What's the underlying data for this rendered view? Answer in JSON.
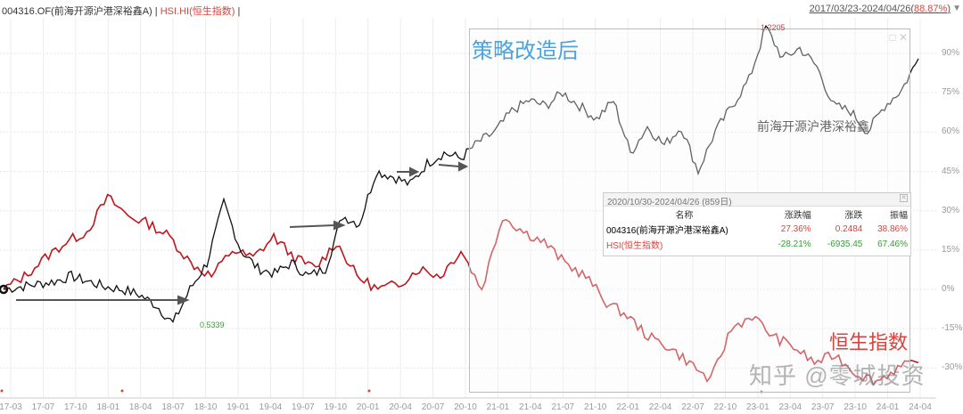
{
  "header": {
    "fund_label": "004316.OF(前海开源沪港深裕鑫A)",
    "sep1": " | ",
    "hsi_label": "HSI.HI(恒生指数)",
    "sep2": " |",
    "range_label": "2017/03/23-2024/04/26(",
    "range_pct": "88.87%",
    "range_close": ")",
    "dropdown_icon": "▼"
  },
  "annotations": {
    "box_title": "策略改造后",
    "fund_name": "前海开源沪港深裕鑫",
    "index_name": "恒生指数",
    "peak_value": "1.2205",
    "low_value": "0.5339",
    "watermark": "知乎 @零城投资",
    "window_buttons": "□ ✕"
  },
  "stats_panel": {
    "title": "2020/10/30-2024/04/26 (859日)",
    "close_icon": "✕",
    "columns": [
      "名称",
      "涨跌幅",
      "涨跌",
      "振幅"
    ],
    "rows": [
      {
        "name": "004316(前海开源沪港深裕鑫A)",
        "change_pct": "27.36%",
        "change": "0.2484",
        "amplitude": "38.86%"
      },
      {
        "name": "HSI(恒生指数)",
        "change_pct": "-28.21%",
        "change": "-6935.45",
        "amplitude": "67.46%"
      }
    ]
  },
  "chart_data": {
    "type": "line",
    "title": "004316.OF vs HSI.HI 2017/03/23-2024/04/26",
    "xlabel": "",
    "ylabel": "",
    "ylim": [
      -35,
      100
    ],
    "y_ticks": [
      "90%",
      "75%",
      "60%",
      "45%",
      "30%",
      "15%",
      "0%",
      "-15%",
      "-30%"
    ],
    "x_ticks": [
      "17-03",
      "17-07",
      "17-10",
      "18-01",
      "18-04",
      "18-07",
      "18-10",
      "19-01",
      "19-04",
      "19-07",
      "19-10",
      "20-01",
      "20-04",
      "20-07",
      "20-10",
      "21-01",
      "21-04",
      "21-07",
      "21-10",
      "22-01",
      "22-04",
      "22-07",
      "22-10",
      "23-01",
      "23-04",
      "23-07",
      "23-10",
      "24-01",
      "24-04"
    ],
    "legend_position": "top-left",
    "grid": true,
    "series": [
      {
        "name": "004316(前海开源沪港深裕鑫A)",
        "color": "#111111",
        "values": [
          0,
          1,
          2,
          3,
          5,
          3,
          1,
          0,
          -2,
          -6,
          -13,
          0,
          10,
          33,
          15,
          8,
          6,
          10,
          5,
          8,
          28,
          25,
          45,
          43,
          40,
          48,
          52,
          50,
          56,
          60,
          68,
          72,
          70,
          75,
          70,
          65,
          72,
          52,
          62,
          55,
          62,
          45,
          60,
          70,
          80,
          100,
          88,
          92,
          85,
          70,
          68,
          60,
          70,
          76,
          88
        ]
      },
      {
        "name": "HSI(恒生指数)",
        "color": "#c0161c",
        "values": [
          0,
          5,
          12,
          18,
          22,
          35,
          28,
          25,
          20,
          10,
          5,
          15,
          12,
          20,
          12,
          8,
          18,
          5,
          0,
          2,
          8,
          5,
          15,
          0,
          28,
          22,
          18,
          10,
          5,
          -5,
          -10,
          -18,
          -22,
          -28,
          -35,
          -15,
          -10,
          -18,
          -22,
          -28,
          -25,
          -32,
          -35,
          -30,
          -28
        ]
      }
    ],
    "annotations": [
      "策略改造后",
      "前海开源沪港深裕鑫",
      "恒生指数",
      "1.2205 (peak)",
      "0.5339 (low)"
    ]
  }
}
